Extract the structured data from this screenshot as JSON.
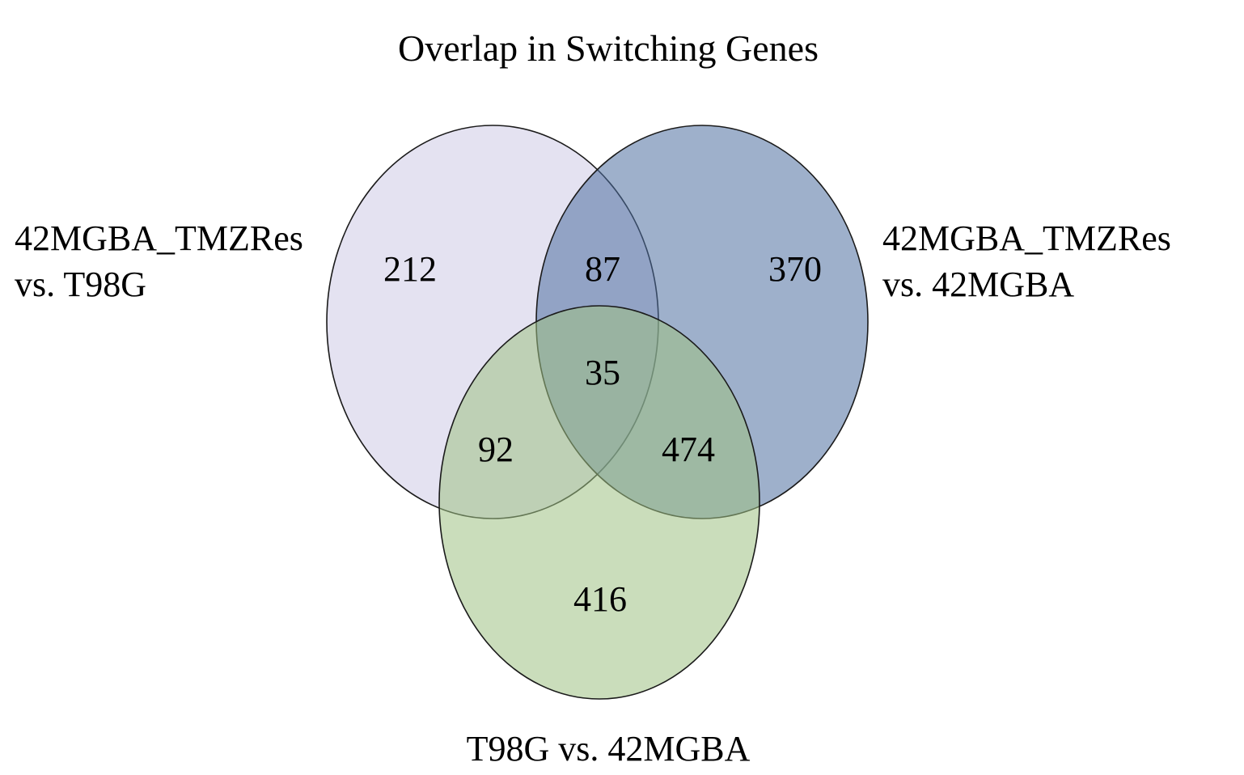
{
  "title": "Overlap in Switching Genes",
  "sets": [
    {
      "id": "a",
      "label_lines": [
        "42MGBA_TMZRes",
        "vs. T98G"
      ],
      "color": "#c9c6e3"
    },
    {
      "id": "b",
      "label_lines": [
        "42MGBA_TMZRes",
        "vs. 42MGBA"
      ],
      "color": "#4f6fa0"
    },
    {
      "id": "c",
      "label_lines": [
        "T98G vs. 42MGBA"
      ],
      "color": "#9fc184"
    }
  ],
  "regions": {
    "a_only": "212",
    "a_b": "87",
    "b_only": "370",
    "a_b_c": "35",
    "a_c": "92",
    "b_c": "474",
    "c_only": "416"
  }
}
